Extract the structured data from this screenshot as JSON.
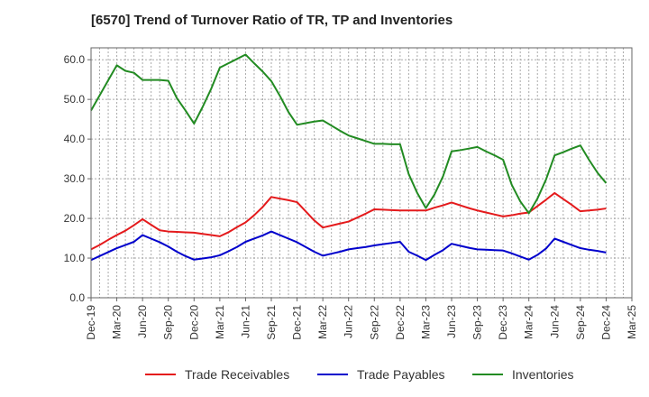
{
  "chart_data": {
    "type": "line",
    "title": "[6570]  Trend of Turnover Ratio of TR, TP and Inventories",
    "xlabel": "",
    "ylabel": "",
    "ylim": [
      0,
      63
    ],
    "yticks": [
      "0.0",
      "10.0",
      "20.0",
      "30.0",
      "40.0",
      "50.0",
      "60.0"
    ],
    "ytick_values": [
      0,
      10,
      20,
      30,
      40,
      50,
      60
    ],
    "grid": true,
    "legend_position": "bottom",
    "xtick_labels": [
      "Dec-19",
      "Mar-20",
      "Jun-20",
      "Sep-20",
      "Dec-20",
      "Mar-21",
      "Jun-21",
      "Sep-21",
      "Dec-21",
      "Mar-22",
      "Jun-22",
      "Sep-22",
      "Dec-22",
      "Mar-23",
      "Jun-23",
      "Sep-23",
      "Dec-23",
      "Mar-24",
      "Jun-24",
      "Sep-24",
      "Dec-24",
      "Mar-25"
    ],
    "x": [
      "Dec-19",
      "Jan-20",
      "Feb-20",
      "Mar-20",
      "Apr-20",
      "May-20",
      "Jun-20",
      "Jul-20",
      "Aug-20",
      "Sep-20",
      "Oct-20",
      "Nov-20",
      "Dec-20",
      "Jan-21",
      "Feb-21",
      "Mar-21",
      "Apr-21",
      "May-21",
      "Jun-21",
      "Jul-21",
      "Aug-21",
      "Sep-21",
      "Oct-21",
      "Nov-21",
      "Dec-21",
      "Jan-22",
      "Feb-22",
      "Mar-22",
      "Apr-22",
      "May-22",
      "Jun-22",
      "Jul-22",
      "Aug-22",
      "Sep-22",
      "Oct-22",
      "Nov-22",
      "Dec-22",
      "Jan-23",
      "Feb-23",
      "Mar-23",
      "Apr-23",
      "May-23",
      "Jun-23",
      "Jul-23",
      "Aug-23",
      "Sep-23",
      "Oct-23",
      "Nov-23",
      "Dec-23",
      "Jan-24",
      "Feb-24",
      "Mar-24",
      "Apr-24",
      "May-24",
      "Jun-24",
      "Jul-24",
      "Aug-24",
      "Sep-24",
      "Oct-24",
      "Nov-24",
      "Dec-24"
    ],
    "series": [
      {
        "name": "Trade Receivables",
        "color": "#e41a1c",
        "values": [
          12.2,
          13.3,
          14.6,
          15.8,
          16.9,
          18.3,
          19.8,
          18.4,
          17.0,
          16.7,
          16.6,
          16.5,
          16.4,
          16.1,
          15.8,
          15.5,
          16.5,
          17.8,
          19.0,
          20.8,
          22.9,
          25.4,
          25.0,
          24.6,
          24.1,
          21.8,
          19.5,
          17.7,
          18.2,
          18.7,
          19.2,
          20.2,
          21.2,
          22.3,
          22.2,
          22.1,
          22.0,
          22.0,
          22.0,
          22.0,
          22.7,
          23.3,
          24.0,
          23.3,
          22.6,
          22.0,
          21.5,
          21.0,
          20.5,
          20.8,
          21.2,
          21.5,
          23.1,
          24.7,
          26.4,
          24.9,
          23.4,
          21.8,
          22.0,
          22.2,
          22.5
        ]
      },
      {
        "name": "Trade Payables",
        "color": "#0000cc",
        "values": [
          9.5,
          10.5,
          11.5,
          12.5,
          13.3,
          14.1,
          15.8,
          14.9,
          14.0,
          12.9,
          11.6,
          10.5,
          9.6,
          9.9,
          10.2,
          10.7,
          11.7,
          12.8,
          14.1,
          14.9,
          15.7,
          16.7,
          15.8,
          14.9,
          14.0,
          12.8,
          11.6,
          10.6,
          11.1,
          11.6,
          12.2,
          12.5,
          12.8,
          13.2,
          13.5,
          13.8,
          14.1,
          11.6,
          10.6,
          9.5,
          10.8,
          12.0,
          13.6,
          13.1,
          12.6,
          12.2,
          12.1,
          12.0,
          11.9,
          11.2,
          10.4,
          9.6,
          10.8,
          12.4,
          14.9,
          14.1,
          13.3,
          12.5,
          12.1,
          11.8,
          11.4
        ]
      },
      {
        "name": "Inventories",
        "color": "#228b22",
        "values": [
          47.2,
          51.0,
          54.8,
          58.6,
          57.2,
          56.7,
          54.9,
          54.9,
          54.9,
          54.7,
          50.3,
          47.2,
          43.9,
          48.1,
          52.7,
          58.0,
          59.1,
          60.2,
          61.3,
          59.1,
          57.0,
          54.6,
          50.9,
          46.8,
          43.6,
          44.0,
          44.4,
          44.7,
          43.4,
          42.1,
          40.9,
          40.2,
          39.5,
          38.8,
          38.8,
          38.7,
          38.7,
          31.2,
          26.4,
          22.6,
          26.0,
          30.6,
          36.9,
          37.2,
          37.6,
          38.0,
          36.9,
          35.9,
          34.8,
          28.5,
          24.3,
          21.3,
          25.0,
          29.8,
          35.9,
          36.7,
          37.6,
          38.4,
          34.8,
          31.5,
          28.9
        ]
      }
    ]
  }
}
